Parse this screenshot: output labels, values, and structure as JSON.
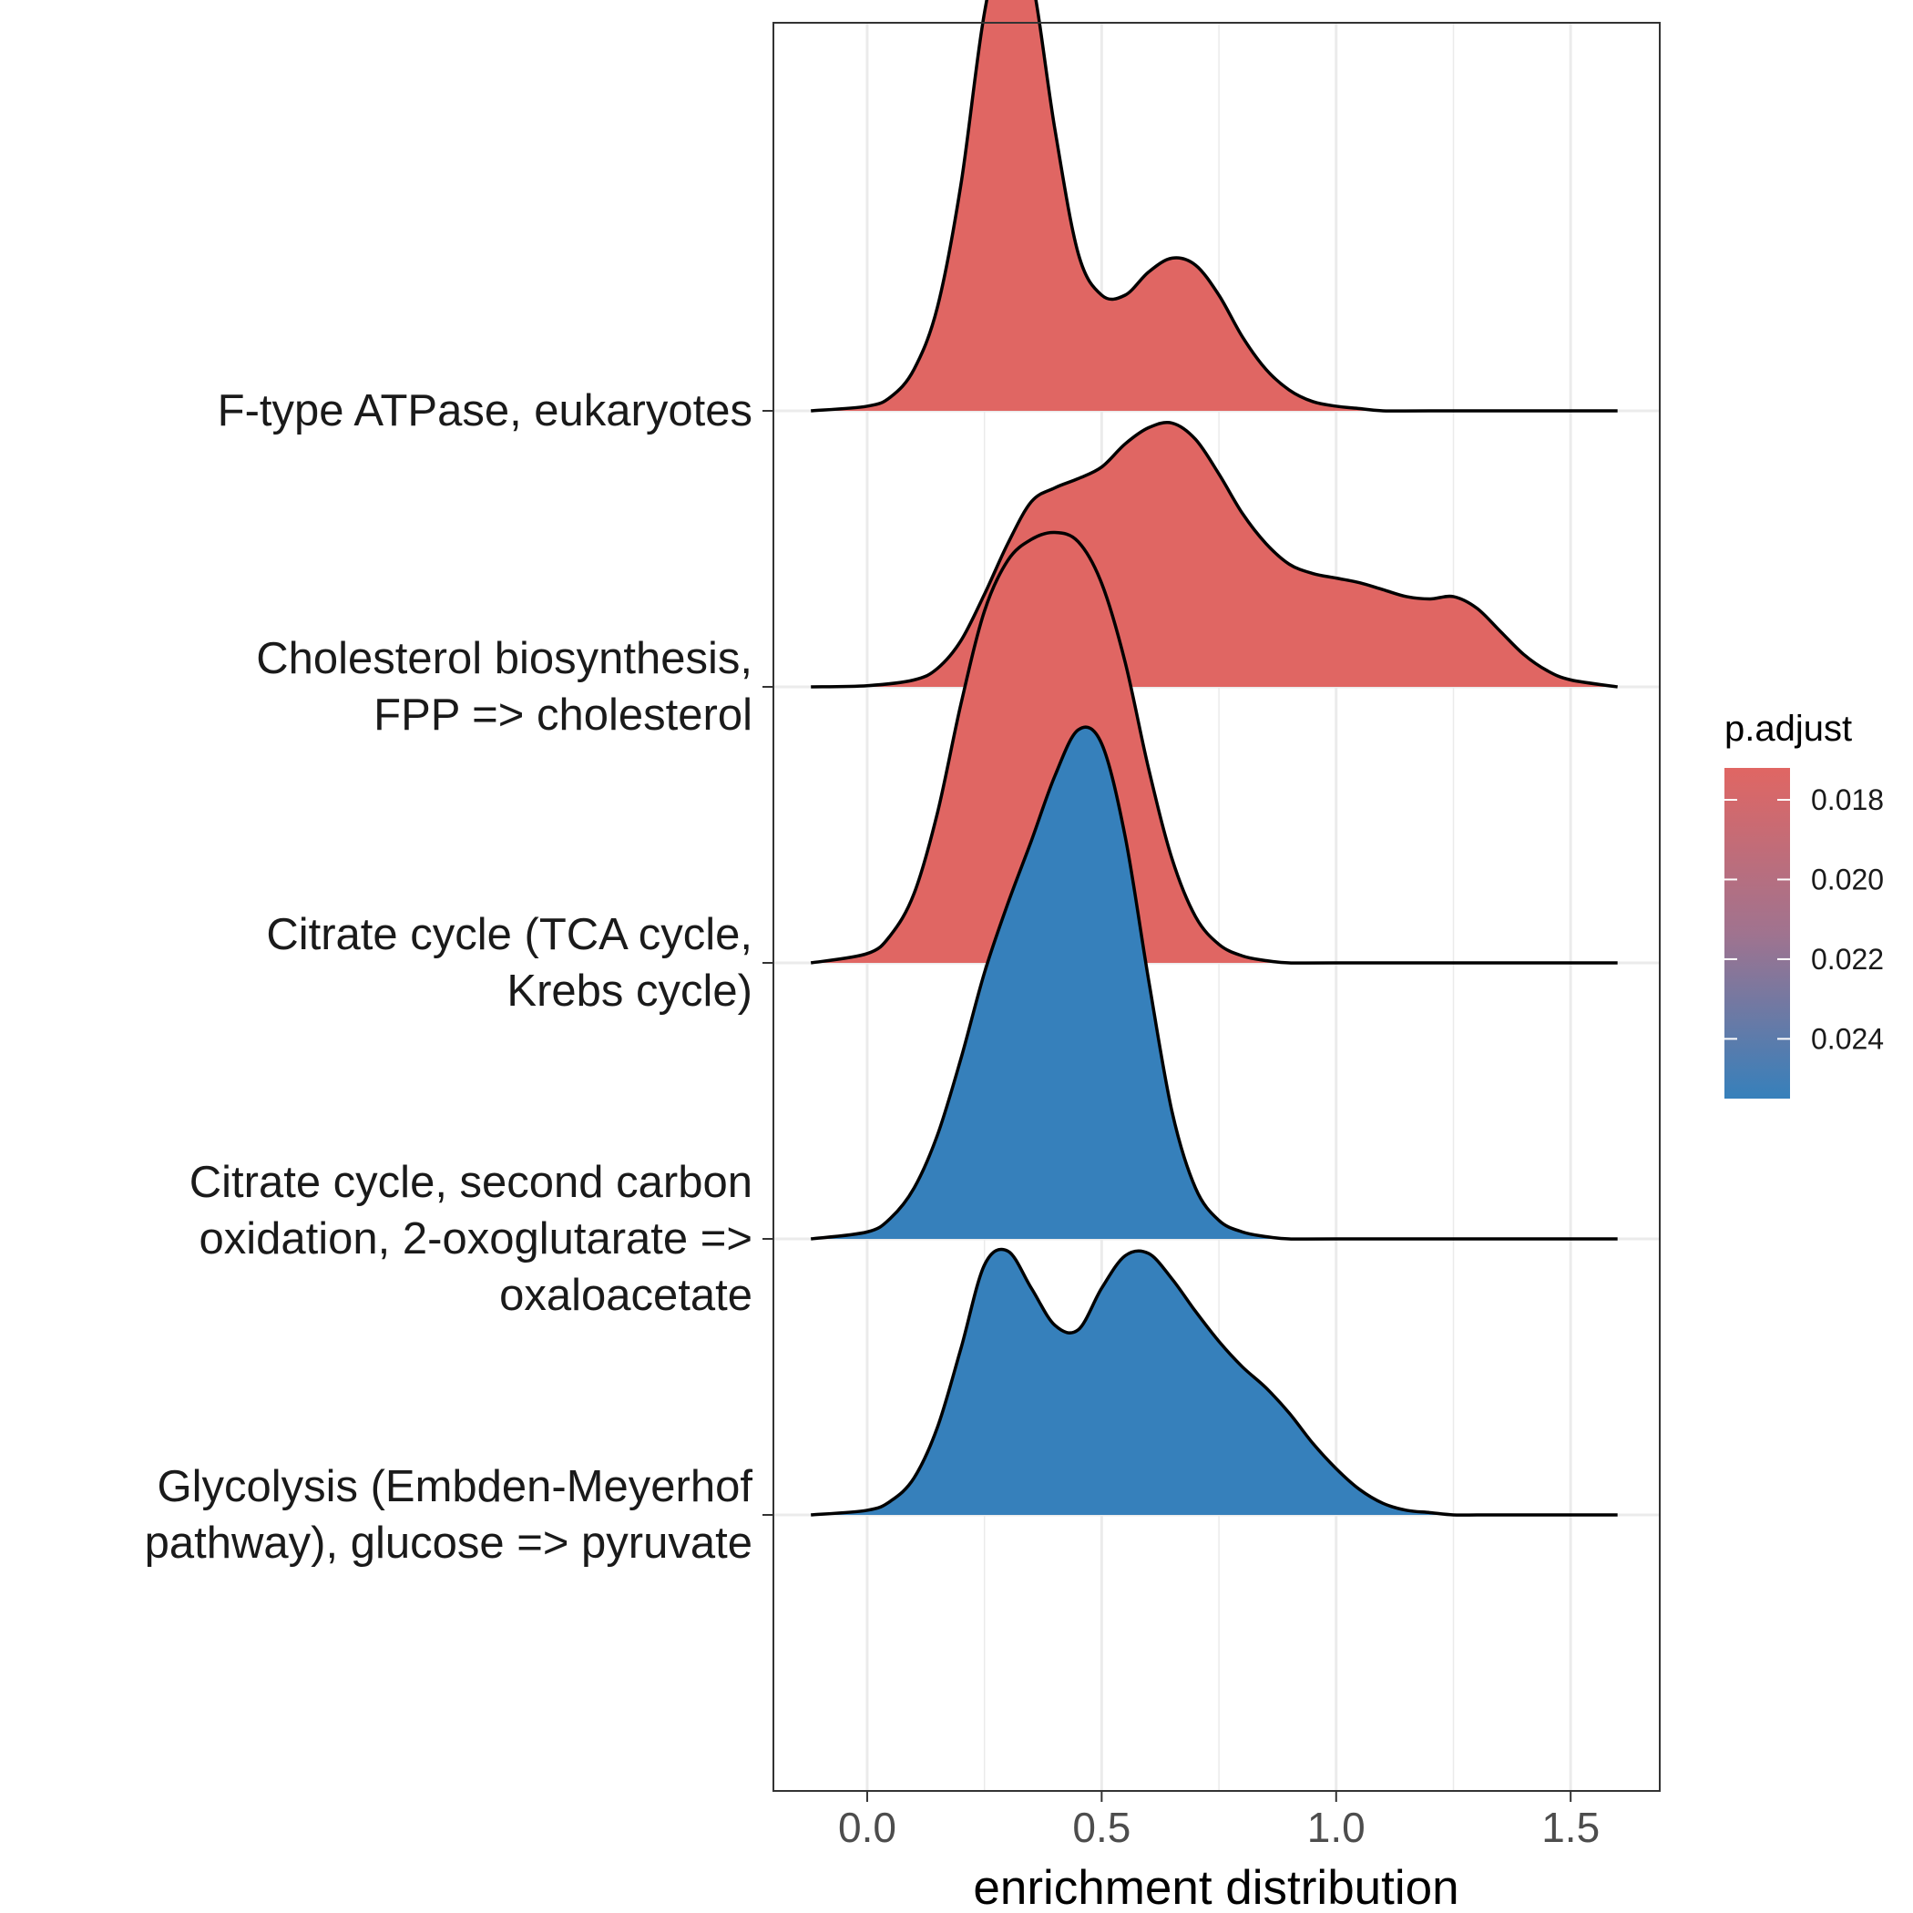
{
  "chart_data": {
    "type": "ridgeline",
    "title": "",
    "xlabel": "enrichment distribution",
    "ylabel": "",
    "xlim": [
      -0.2,
      1.69
    ],
    "x_ticks": [
      "0.0",
      "0.5",
      "1.0",
      "1.5"
    ],
    "x_tick_values": [
      0.0,
      0.5,
      1.0,
      1.5
    ],
    "grid": true,
    "legend": {
      "title": "p.adjust",
      "placement": "right",
      "range": [
        0.0172,
        0.0255
      ],
      "ticks": [
        "0.018",
        "0.020",
        "0.022",
        "0.024"
      ],
      "tick_values": [
        0.018,
        0.02,
        0.022,
        0.024
      ],
      "low_color": "#E06663",
      "high_color": "#3680BB"
    },
    "series": [
      {
        "lines": [
          "F-type ATPase, eukaryotes"
        ],
        "p_adjust": 0.0175,
        "color": "#E06663",
        "density": {
          "x": [
            -0.12,
            0.0,
            0.05,
            0.1,
            0.15,
            0.2,
            0.25,
            0.3,
            0.35,
            0.4,
            0.45,
            0.5,
            0.55,
            0.6,
            0.65,
            0.7,
            0.75,
            0.8,
            0.85,
            0.9,
            0.95,
            1.0,
            1.05,
            1.1,
            1.2,
            1.6
          ],
          "y": [
            0.0,
            0.02,
            0.06,
            0.18,
            0.45,
            0.98,
            1.72,
            2.12,
            1.88,
            1.22,
            0.68,
            0.5,
            0.5,
            0.6,
            0.66,
            0.63,
            0.5,
            0.32,
            0.18,
            0.09,
            0.04,
            0.02,
            0.01,
            0.0,
            0.0,
            0.0
          ]
        }
      },
      {
        "lines": [
          "Cholesterol biosynthesis,",
          "FPP => cholesterol"
        ],
        "p_adjust": 0.0175,
        "color": "#E06663",
        "density": {
          "x": [
            -0.12,
            0.0,
            0.1,
            0.15,
            0.2,
            0.25,
            0.3,
            0.35,
            0.4,
            0.45,
            0.5,
            0.55,
            0.6,
            0.65,
            0.7,
            0.75,
            0.8,
            0.85,
            0.9,
            0.95,
            1.0,
            1.05,
            1.1,
            1.15,
            1.2,
            1.25,
            1.3,
            1.35,
            1.4,
            1.45,
            1.5,
            1.6
          ],
          "y": [
            0.0,
            0.005,
            0.03,
            0.08,
            0.2,
            0.4,
            0.62,
            0.8,
            0.86,
            0.9,
            0.95,
            1.05,
            1.12,
            1.14,
            1.07,
            0.92,
            0.75,
            0.62,
            0.53,
            0.49,
            0.47,
            0.45,
            0.42,
            0.39,
            0.38,
            0.39,
            0.34,
            0.24,
            0.14,
            0.07,
            0.03,
            0.0
          ]
        }
      },
      {
        "lines": [
          "Citrate cycle (TCA cycle,",
          "Krebs cycle)"
        ],
        "p_adjust": 0.0175,
        "color": "#E06663",
        "density": {
          "x": [
            -0.12,
            0.0,
            0.05,
            0.1,
            0.15,
            0.2,
            0.25,
            0.3,
            0.35,
            0.4,
            0.45,
            0.5,
            0.55,
            0.6,
            0.65,
            0.7,
            0.75,
            0.8,
            0.85,
            0.9,
            1.0,
            1.6
          ],
          "y": [
            0.0,
            0.04,
            0.12,
            0.3,
            0.65,
            1.12,
            1.52,
            1.74,
            1.83,
            1.86,
            1.82,
            1.64,
            1.3,
            0.84,
            0.45,
            0.2,
            0.08,
            0.03,
            0.01,
            0.0,
            0.0,
            0.0
          ]
        }
      },
      {
        "lines": [
          "Citrate cycle, second carbon",
          "oxidation, 2-oxoglutarate =>",
          "oxaloacetate"
        ],
        "p_adjust": 0.0255,
        "color": "#3680BB",
        "density": {
          "x": [
            -0.12,
            0.0,
            0.05,
            0.1,
            0.15,
            0.2,
            0.25,
            0.3,
            0.35,
            0.4,
            0.45,
            0.5,
            0.55,
            0.6,
            0.65,
            0.7,
            0.75,
            0.8,
            0.85,
            0.9,
            1.0,
            1.6
          ],
          "y": [
            0.0,
            0.03,
            0.09,
            0.22,
            0.45,
            0.78,
            1.15,
            1.45,
            1.72,
            2.0,
            2.2,
            2.14,
            1.74,
            1.12,
            0.55,
            0.22,
            0.08,
            0.03,
            0.01,
            0.0,
            0.0,
            0.0
          ]
        }
      },
      {
        "lines": [
          "Glycolysis (Embden-Meyerhof",
          "pathway), glucose => pyruvate"
        ],
        "p_adjust": 0.0255,
        "color": "#3680BB",
        "density": {
          "x": [
            -0.12,
            0.0,
            0.05,
            0.1,
            0.15,
            0.2,
            0.25,
            0.3,
            0.35,
            0.4,
            0.45,
            0.5,
            0.55,
            0.6,
            0.65,
            0.7,
            0.75,
            0.8,
            0.85,
            0.9,
            0.95,
            1.0,
            1.05,
            1.1,
            1.15,
            1.2,
            1.25,
            1.3,
            1.4,
            1.6
          ],
          "y": [
            0.0,
            0.02,
            0.06,
            0.16,
            0.38,
            0.72,
            1.08,
            1.14,
            0.98,
            0.82,
            0.8,
            0.98,
            1.12,
            1.13,
            1.02,
            0.88,
            0.75,
            0.64,
            0.55,
            0.44,
            0.31,
            0.2,
            0.11,
            0.05,
            0.02,
            0.01,
            0.0,
            0.0,
            0.0,
            0.0
          ]
        }
      }
    ]
  }
}
